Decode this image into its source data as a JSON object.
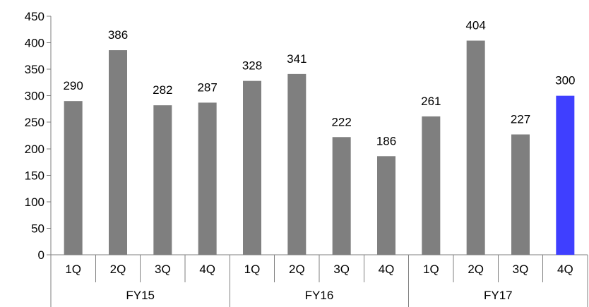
{
  "chart_data": {
    "type": "bar",
    "title": "",
    "xlabel": "",
    "ylabel": "",
    "ylim": [
      0,
      450
    ],
    "yticks": [
      0,
      50,
      100,
      150,
      200,
      250,
      300,
      350,
      400,
      450
    ],
    "grid": false,
    "legend": "none",
    "groups": [
      "FY15",
      "FY16",
      "FY17"
    ],
    "categories": [
      "1Q",
      "2Q",
      "3Q",
      "4Q",
      "1Q",
      "2Q",
      "3Q",
      "4Q",
      "1Q",
      "2Q",
      "3Q",
      "4Q"
    ],
    "values": [
      290,
      386,
      282,
      287,
      328,
      341,
      222,
      186,
      261,
      404,
      227,
      300
    ],
    "bar_colors": [
      "#7f7f7f",
      "#7f7f7f",
      "#7f7f7f",
      "#7f7f7f",
      "#7f7f7f",
      "#7f7f7f",
      "#7f7f7f",
      "#7f7f7f",
      "#7f7f7f",
      "#7f7f7f",
      "#7f7f7f",
      "#3f3fff"
    ]
  }
}
